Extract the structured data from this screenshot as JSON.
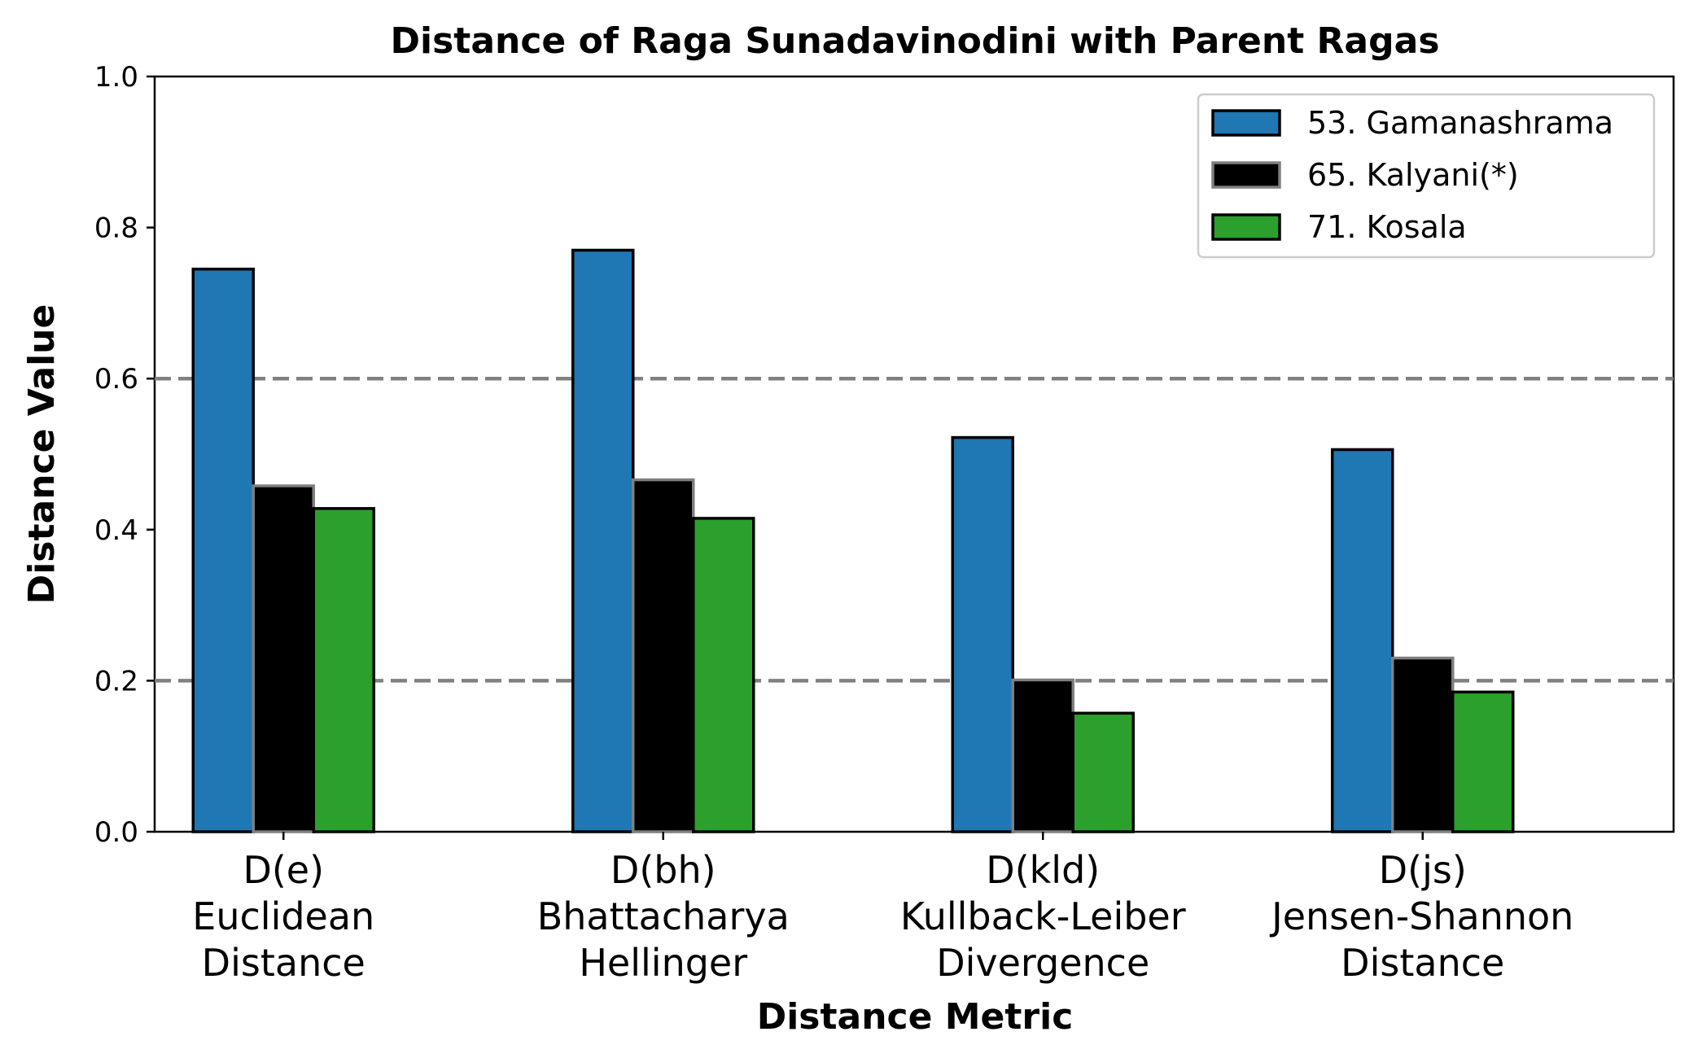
{
  "chart_data": {
    "type": "bar",
    "title": "Distance of Raga Sunadavinodini with Parent Ragas",
    "xlabel": "Distance Metric",
    "ylabel": "Distance Value",
    "ylim": [
      0,
      1.0
    ],
    "yticks": [
      "0.0",
      "0.2",
      "0.4",
      "0.6",
      "0.8",
      "1.0"
    ],
    "reference_lines": [
      0.2,
      0.6
    ],
    "legend_position": "top-right",
    "categories": [
      [
        "D(e)",
        "Euclidean",
        "Distance"
      ],
      [
        "D(bh)",
        "Bhattacharya",
        "Hellinger"
      ],
      [
        "D(kld)",
        "Kullback-Leiber",
        "Divergence"
      ],
      [
        "D(js)",
        "Jensen-Shannon",
        "Distance"
      ]
    ],
    "series": [
      {
        "name": "53. Gamanashrama",
        "color": "#1f77b4",
        "edge": "#000000",
        "values": [
          0.745,
          0.77,
          0.522,
          0.506
        ]
      },
      {
        "name": "65. Kalyani(*)",
        "color": "#000000",
        "edge": "#7f7f7f",
        "values": [
          0.458,
          0.466,
          0.201,
          0.23
        ]
      },
      {
        "name": "71. Kosala",
        "color": "#2ca02c",
        "edge": "#000000",
        "values": [
          0.428,
          0.415,
          0.157,
          0.185
        ]
      }
    ]
  }
}
